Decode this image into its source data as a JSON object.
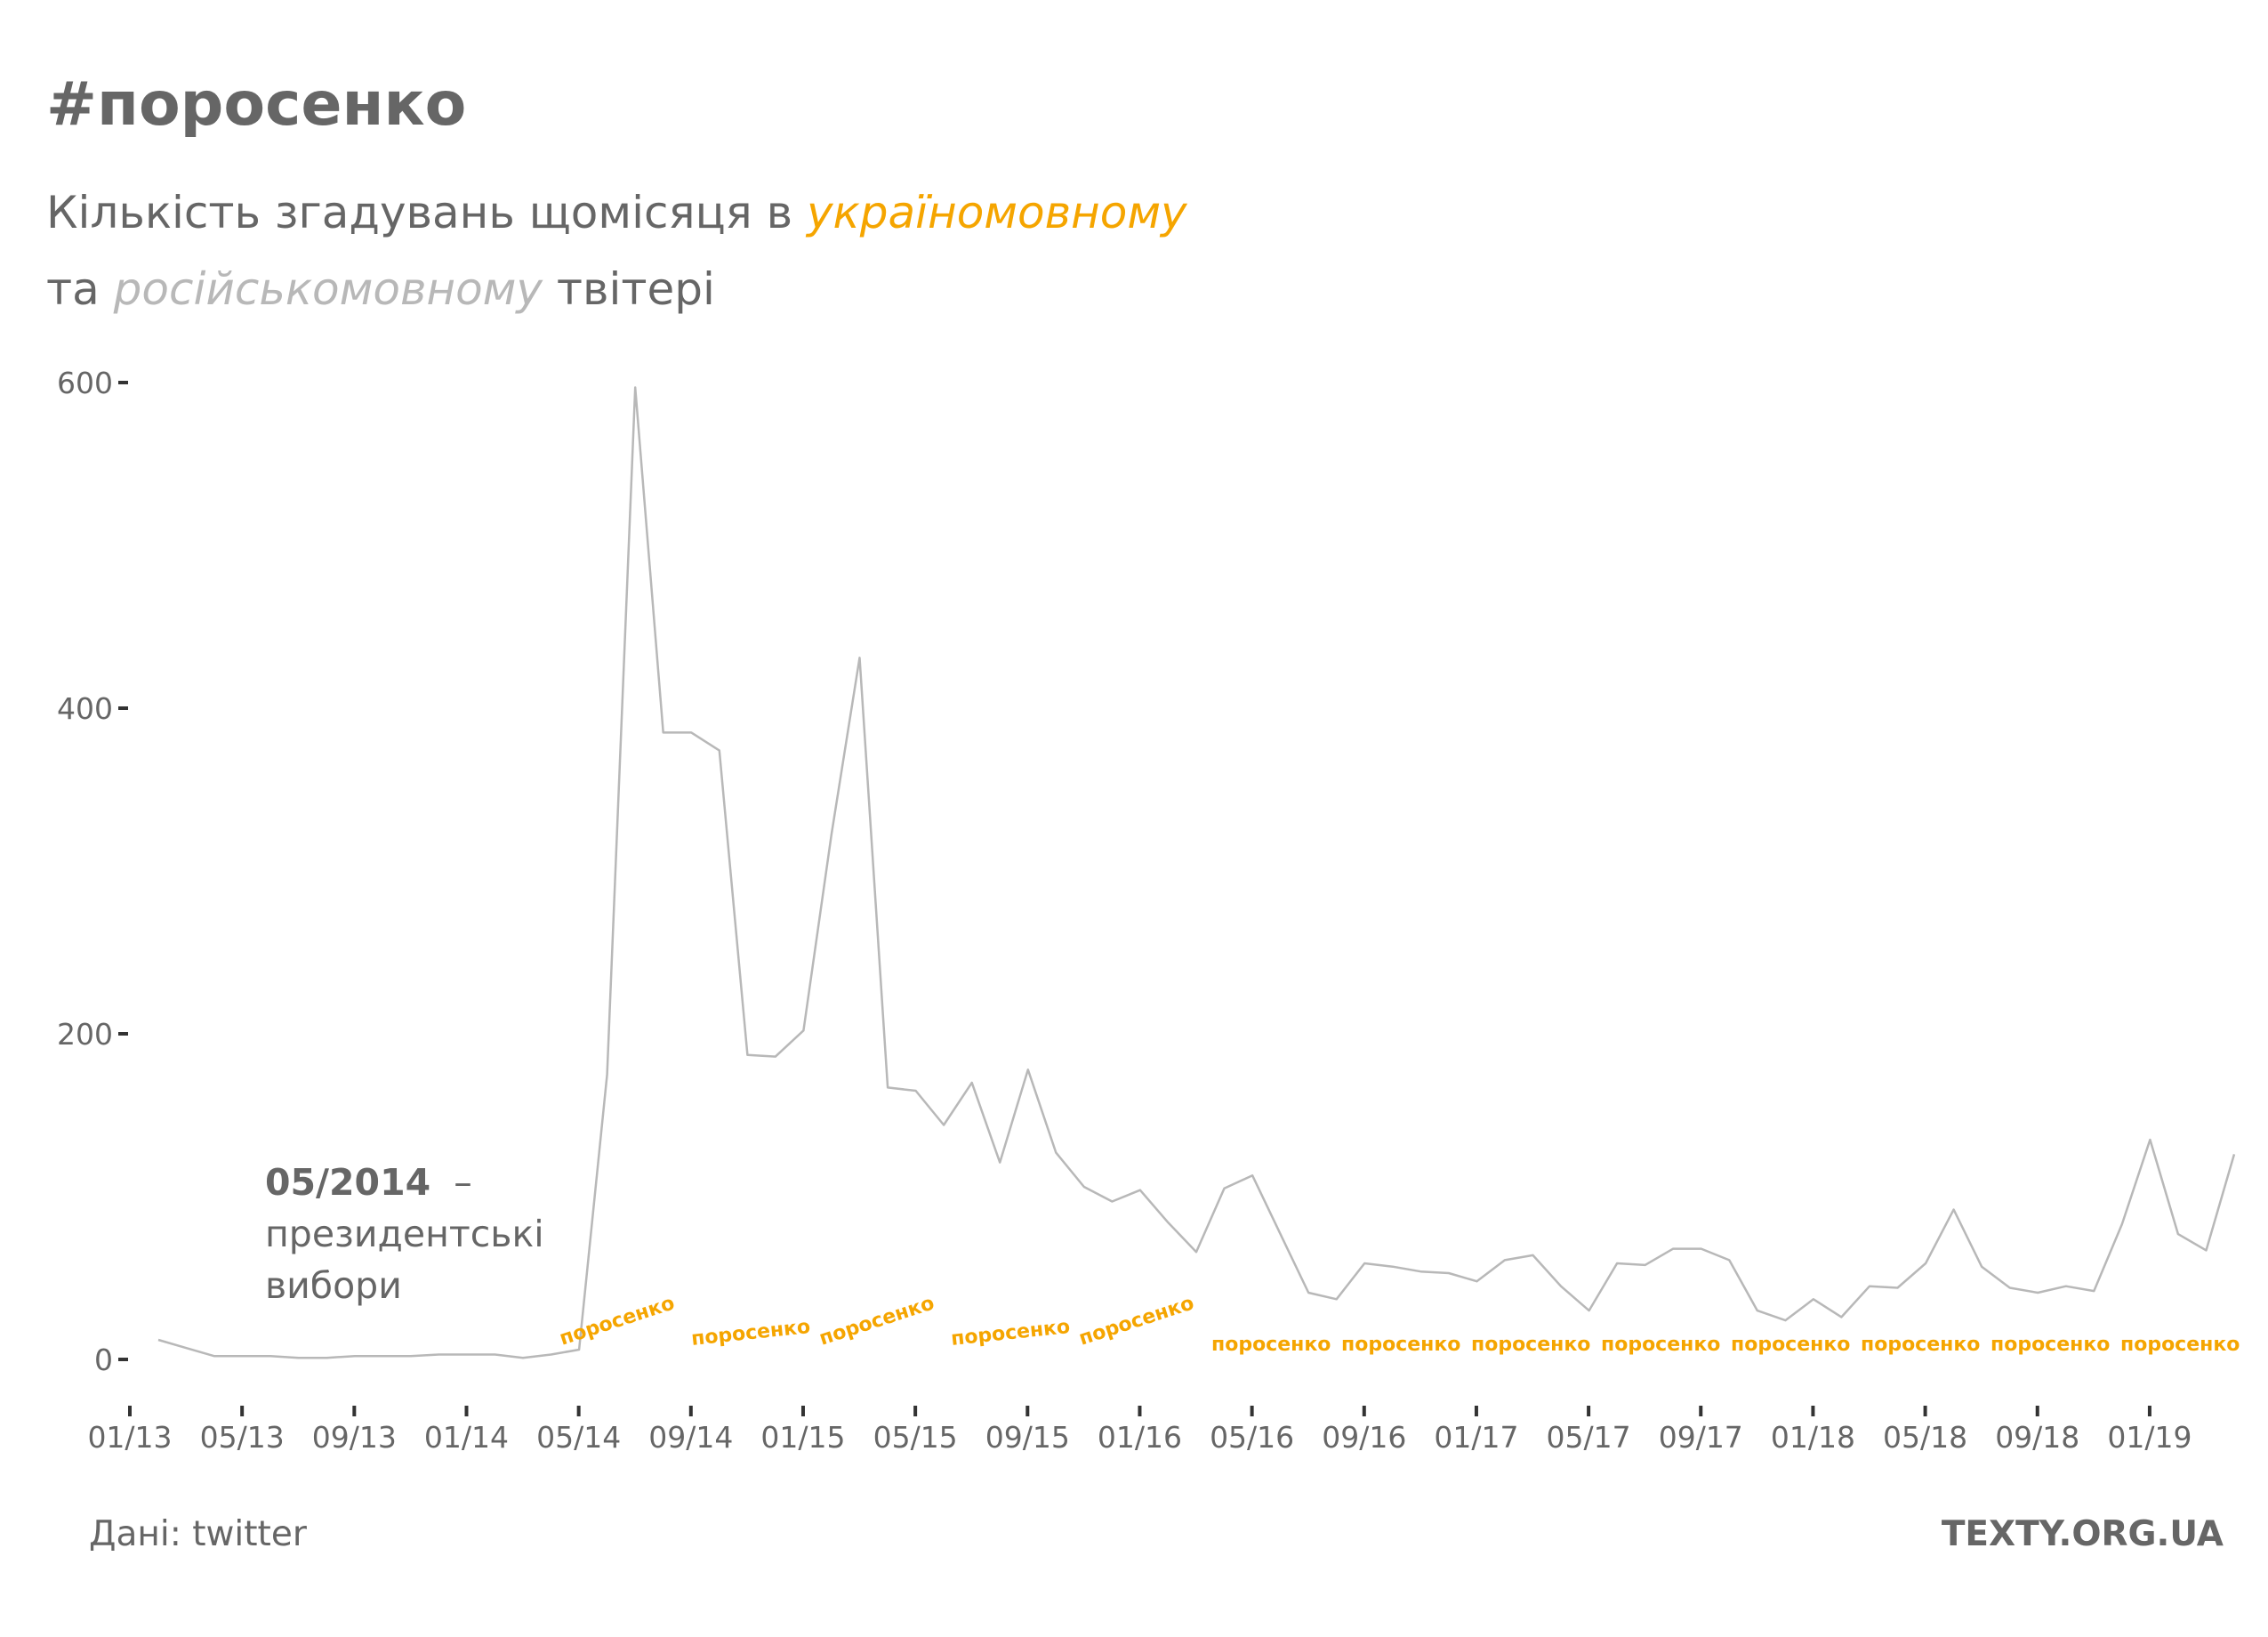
{
  "title": "#поросенко",
  "subtitle": {
    "part1": "Кількість згадувань щомісяця в ",
    "uk_word": "україномовному",
    "part2": "та ",
    "ru_word": "російськомовному",
    "part3": " твітері"
  },
  "annotation": {
    "date": "05/2014",
    "dash": "–",
    "line1": "президентські",
    "line2": "вибори"
  },
  "source": "Дані: twitter",
  "brand": "TEXTY.ORG.UA",
  "colors": {
    "ukrainian": "#f5a500",
    "russian": "#b8b8b8",
    "text": "#666666"
  },
  "chart_data": {
    "type": "line",
    "title": "#поросенко",
    "ylim": [
      0,
      600
    ],
    "yticks": [
      0,
      200,
      400,
      600
    ],
    "xticks": [
      "01/13",
      "05/13",
      "09/13",
      "01/14",
      "05/14",
      "09/14",
      "01/15",
      "05/15",
      "09/15",
      "01/16",
      "05/16",
      "09/16",
      "01/17",
      "05/17",
      "09/17",
      "01/18",
      "05/18",
      "09/18",
      "01/19"
    ],
    "x": [
      "01/13",
      "02/13",
      "03/13",
      "04/13",
      "05/13",
      "06/13",
      "07/13",
      "08/13",
      "09/13",
      "10/13",
      "11/13",
      "12/13",
      "01/14",
      "02/14",
      "03/14",
      "04/14",
      "05/14",
      "06/14",
      "07/14",
      "08/14",
      "09/14",
      "10/14",
      "11/14",
      "12/14",
      "01/15",
      "02/15",
      "03/15",
      "04/15",
      "05/15",
      "06/15",
      "07/15",
      "08/15",
      "09/15",
      "10/15",
      "11/15",
      "12/15",
      "01/16",
      "02/16",
      "03/16",
      "04/16",
      "05/16",
      "06/16",
      "07/16",
      "08/16",
      "09/16",
      "10/16",
      "11/16",
      "12/16",
      "01/17",
      "02/17",
      "03/17",
      "04/17",
      "05/17",
      "06/17",
      "07/17",
      "08/17",
      "09/17",
      "10/17",
      "11/17",
      "12/17",
      "01/18",
      "02/18",
      "03/18",
      "04/18",
      "05/18",
      "06/18",
      "07/18",
      "08/18",
      "09/18",
      "10/18",
      "11/18",
      "12/18",
      "01/19",
      "02/19",
      "03/19"
    ],
    "series": [
      {
        "language": "ru",
        "values": [
          12,
          7,
          2,
          2,
          2,
          1,
          1,
          2,
          2,
          2,
          3,
          3,
          3,
          1,
          3,
          6,
          175,
          597,
          385,
          385,
          374,
          187,
          186,
          202,
          323,
          431,
          167,
          165,
          144,
          170,
          121,
          178,
          127,
          106,
          97,
          104,
          84,
          66,
          105,
          113,
          77,
          41,
          37,
          59,
          57,
          54,
          53,
          48,
          61,
          64,
          45,
          30,
          59,
          58,
          68,
          68,
          61,
          30,
          24,
          37,
          26,
          45,
          44,
          59,
          92,
          57,
          44,
          41,
          45,
          42,
          83,
          135,
          77,
          67,
          126
        ]
      },
      {
        "language": "uk",
        "label_text": "поросенко"
      }
    ]
  }
}
